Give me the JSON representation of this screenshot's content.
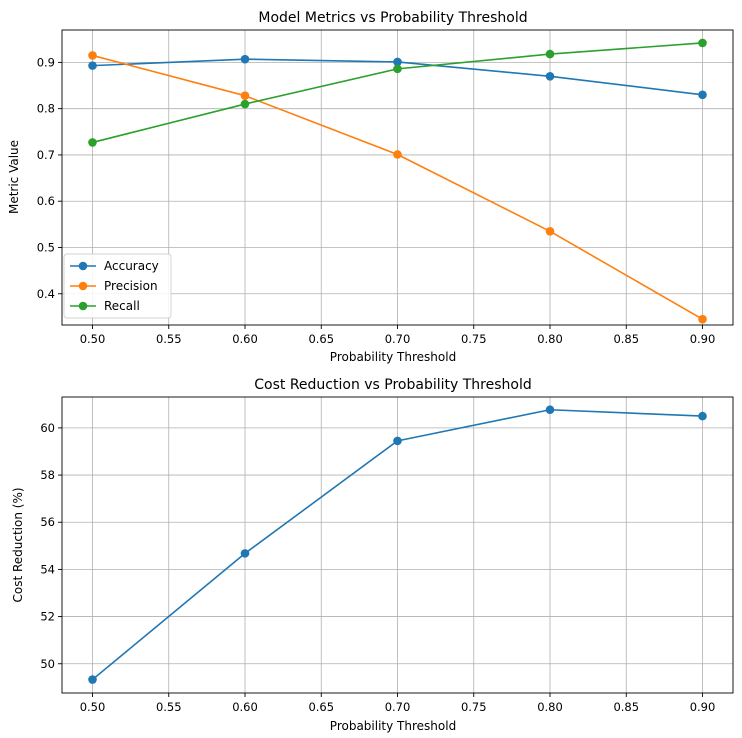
{
  "chart_data": [
    {
      "type": "line",
      "title": "Model Metrics vs Probability Threshold",
      "xlabel": "Probability Threshold",
      "ylabel": "Metric Value",
      "x": [
        0.5,
        0.6,
        0.7,
        0.8,
        0.9
      ],
      "xlim": [
        0.48,
        0.92
      ],
      "ylim": [
        0.3325,
        0.97
      ],
      "xticks": [
        0.5,
        0.55,
        0.6,
        0.65,
        0.7,
        0.75,
        0.8,
        0.85,
        0.9
      ],
      "xtick_labels": [
        "0.50",
        "0.55",
        "0.60",
        "0.65",
        "0.70",
        "0.75",
        "0.80",
        "0.85",
        "0.90"
      ],
      "yticks": [
        0.4,
        0.5,
        0.6,
        0.7,
        0.8,
        0.9
      ],
      "ytick_labels": [
        "0.4",
        "0.5",
        "0.6",
        "0.7",
        "0.8",
        "0.9"
      ],
      "grid": true,
      "legend": "lower-left",
      "series": [
        {
          "name": "Accuracy",
          "color": "#1f77b4",
          "values": [
            0.893,
            0.907,
            0.901,
            0.87,
            0.83
          ]
        },
        {
          "name": "Precision",
          "color": "#ff7f0e",
          "values": [
            0.915,
            0.828,
            0.701,
            0.535,
            0.345
          ]
        },
        {
          "name": "Recall",
          "color": "#2ca02c",
          "values": [
            0.727,
            0.81,
            0.886,
            0.918,
            0.942
          ]
        }
      ]
    },
    {
      "type": "line",
      "title": "Cost Reduction vs Probability Threshold",
      "xlabel": "Probability Threshold",
      "ylabel": "Cost Reduction (%)",
      "x": [
        0.5,
        0.6,
        0.7,
        0.8,
        0.9
      ],
      "xlim": [
        0.48,
        0.92
      ],
      "ylim": [
        48.76,
        61.31
      ],
      "xticks": [
        0.5,
        0.55,
        0.6,
        0.65,
        0.7,
        0.75,
        0.8,
        0.85,
        0.9
      ],
      "xtick_labels": [
        "0.50",
        "0.55",
        "0.60",
        "0.65",
        "0.70",
        "0.75",
        "0.80",
        "0.85",
        "0.90"
      ],
      "yticks": [
        50,
        52,
        54,
        56,
        58,
        60
      ],
      "ytick_labels": [
        "50",
        "52",
        "54",
        "56",
        "58",
        "60"
      ],
      "grid": true,
      "series": [
        {
          "name": "Cost Reduction",
          "color": "#1f77b4",
          "values": [
            49.33,
            54.68,
            59.45,
            60.77,
            60.5
          ]
        }
      ]
    }
  ]
}
